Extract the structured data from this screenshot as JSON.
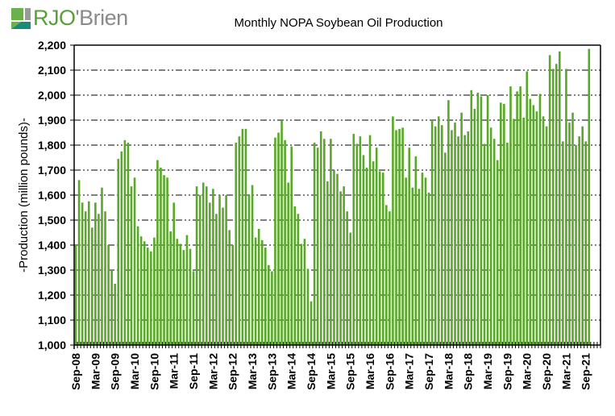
{
  "logo": {
    "text_prefix": "RJO",
    "text_suffix": "'Brien",
    "icon": "rjobrien-logo-mark"
  },
  "colors": {
    "bar": "#5aa82a",
    "logo_green": "#6ab04c",
    "logo_grey": "#9a9a9a",
    "logo_teal": "#1a8a7a",
    "grid": "#000000"
  },
  "chart_data": {
    "type": "bar",
    "title": "Monthly NOPA Soybean Oil Production",
    "xlabel": "",
    "ylabel": "-Production (million pounds)-",
    "ylim": [
      1000,
      2200
    ],
    "yticks": [
      1000,
      1100,
      1200,
      1300,
      1400,
      1500,
      1600,
      1700,
      1800,
      1900,
      2000,
      2100,
      2200
    ],
    "ytick_labels": [
      "1,000",
      "1,100",
      "1,200",
      "1,300",
      "1,400",
      "1,500",
      "1,600",
      "1,700",
      "1,800",
      "1,900",
      "2,000",
      "2,100",
      "2,200"
    ],
    "grid": true,
    "legend": "none",
    "start_month": "Sep-08",
    "end_month": "Oct-21",
    "axis_months": 161,
    "xtick_labels": [
      "Sep-08",
      "Mar-09",
      "Sep-09",
      "Mar-10",
      "Sep-10",
      "Mar-11",
      "Sep-11",
      "Mar-12",
      "Sep-12",
      "Mar-13",
      "Sep-13",
      "Mar-14",
      "Sep-14",
      "Mar-15",
      "Sep-15",
      "Mar-16",
      "Sep-16",
      "Mar-17",
      "Sep-17",
      "Mar-18",
      "Sep-18",
      "Mar-19",
      "Sep-19",
      "Mar-20",
      "Sep-20",
      "Mar-21",
      "Sep-21"
    ],
    "xtick_every_months": 6,
    "series": [
      {
        "name": "Soybean Oil Production",
        "values": [
          1400,
          1660,
          1570,
          1535,
          1575,
          1470,
          1570,
          1525,
          1630,
          1535,
          1400,
          1300,
          1245,
          1745,
          1775,
          1820,
          1810,
          1635,
          1670,
          1475,
          1435,
          1415,
          1390,
          1375,
          1430,
          1740,
          1710,
          1680,
          1670,
          1455,
          1570,
          1425,
          1405,
          1380,
          1440,
          1385,
          1295,
          1635,
          1600,
          1650,
          1635,
          1570,
          1625,
          1525,
          1600,
          1550,
          1600,
          1460,
          1400,
          1810,
          1835,
          1865,
          1865,
          1600,
          1640,
          1430,
          1465,
          1420,
          1390,
          1320,
          1295,
          1830,
          1850,
          1900,
          1820,
          1650,
          1795,
          1555,
          1525,
          1405,
          1425,
          1305,
          1175,
          1810,
          1790,
          1855,
          1825,
          1655,
          1825,
          1700,
          1685,
          1615,
          1635,
          1535,
          1450,
          1845,
          1805,
          1835,
          1760,
          1710,
          1840,
          1735,
          1790,
          1695,
          1690,
          1560,
          1535,
          1915,
          1860,
          1865,
          1870,
          1670,
          1790,
          1630,
          1755,
          1625,
          1690,
          1670,
          1610,
          1900,
          1875,
          1915,
          1880,
          1770,
          1980,
          1860,
          1890,
          1835,
          1930,
          1840,
          1855,
          2020,
          1945,
          2010,
          1995,
          1805,
          2000,
          1870,
          1825,
          1740,
          1970,
          1965,
          1810,
          2035,
          1905,
          2015,
          2035,
          1910,
          2095,
          1985,
          1960,
          1935,
          2005,
          1915,
          1875,
          2160,
          2105,
          2125,
          2175,
          1815,
          2105,
          1890,
          1930,
          1800,
          1835,
          1875,
          1815,
          2185
        ]
      }
    ]
  }
}
